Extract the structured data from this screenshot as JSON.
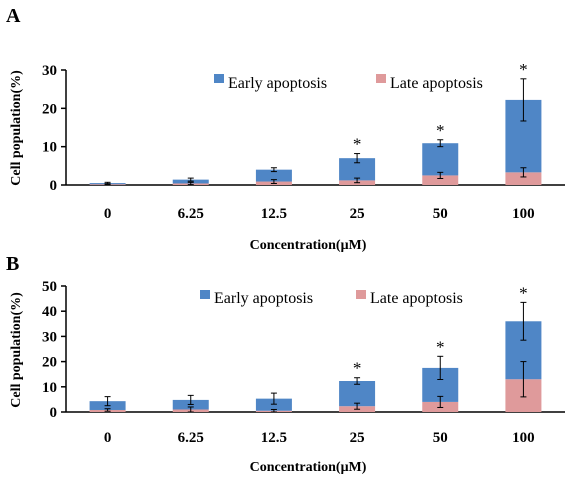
{
  "colors": {
    "early": "#4f86c6",
    "late": "#df9a9b",
    "axis": "#000000"
  },
  "chart_data": [
    {
      "panel": "A",
      "type": "bar",
      "stacked": true,
      "categories": [
        "0",
        "6.25",
        "12.5",
        "25",
        "50",
        "100"
      ],
      "series": [
        {
          "name": "Late apoptosis",
          "values": [
            0.2,
            0.4,
            0.9,
            1.2,
            2.5,
            3.3
          ],
          "errors": [
            0.1,
            0.3,
            0.5,
            0.6,
            0.8,
            1.2
          ]
        },
        {
          "name": "Early apoptosis",
          "values": [
            0.3,
            1.0,
            3.1,
            5.8,
            8.4,
            18.9
          ],
          "errors": [
            0.2,
            0.4,
            0.5,
            1.2,
            0.9,
            5.5
          ]
        }
      ],
      "significant": [
        false,
        false,
        false,
        true,
        true,
        true
      ],
      "significance_marker": "*",
      "xlabel": "Concentration(μM)",
      "ylabel": "Cell population(%)",
      "ylim": [
        0,
        30
      ],
      "yticks": [
        "0",
        "10",
        "20",
        "30"
      ],
      "legend_position": "top"
    },
    {
      "panel": "B",
      "type": "bar",
      "stacked": true,
      "categories": [
        "0",
        "6.25",
        "12.5",
        "25",
        "50",
        "100"
      ],
      "series": [
        {
          "name": "Late apoptosis",
          "values": [
            0.8,
            1.0,
            0.5,
            2.3,
            4.0,
            13.0
          ],
          "errors": [
            0.5,
            1.0,
            0.5,
            1.2,
            2.2,
            7.0
          ]
        },
        {
          "name": "Early apoptosis",
          "values": [
            3.5,
            3.8,
            4.8,
            10.0,
            13.5,
            23.0
          ],
          "errors": [
            1.8,
            1.8,
            2.2,
            1.3,
            4.6,
            7.5
          ]
        }
      ],
      "significant": [
        false,
        false,
        false,
        true,
        true,
        true
      ],
      "significance_marker": "*",
      "xlabel": "Concentration(μM)",
      "ylabel": "Cell population(%)",
      "ylim": [
        0,
        50
      ],
      "yticks": [
        "0",
        "10",
        "20",
        "30",
        "40",
        "50"
      ],
      "legend_position": "top"
    }
  ]
}
